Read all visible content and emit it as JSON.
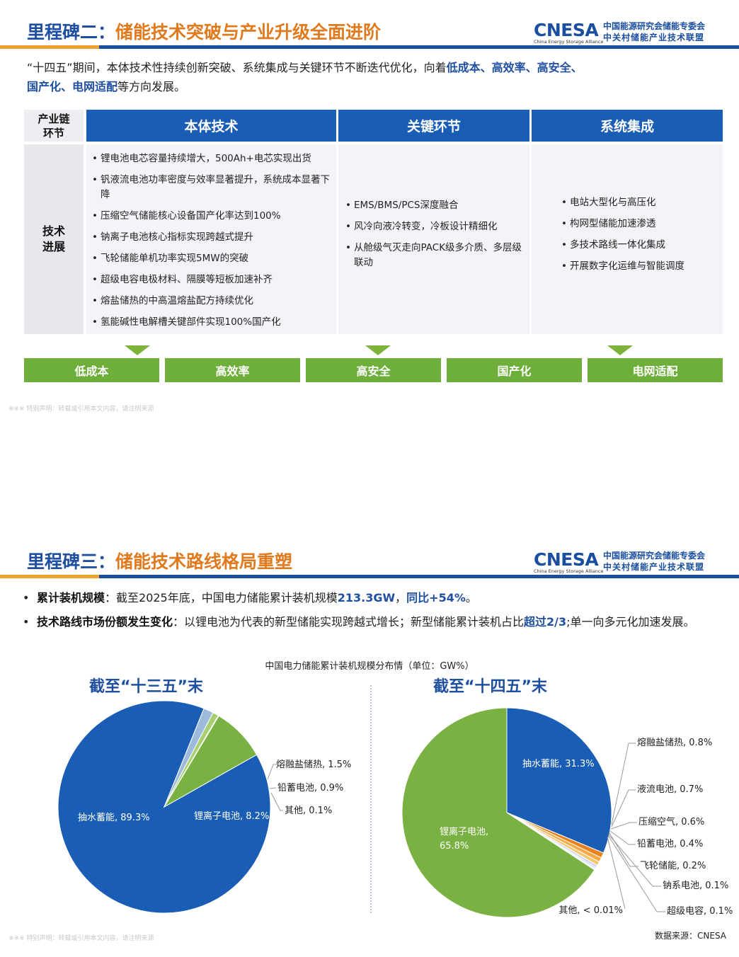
{
  "slide1": {
    "title_lead": "里程碑二：",
    "title_main": "储能技术突破与产业升级全面进阶",
    "logo": {
      "mark": "CNESA",
      "sub": "China Energy Storage Alliance",
      "cn1": "中国能源研究会储能专委会",
      "cn2": "中关村储能产业技术联盟"
    },
    "intro": {
      "text1": "“十四五”期间，本体技术性持续创新突破、系统集成与关键环节不断迭代优化，向着",
      "hl1": "低成本、高效率、高安全、",
      "hl2": "国产化、电网适配",
      "text2": "等方向发展。"
    },
    "table": {
      "corner": "产业链\n环节",
      "row_label": "技术\n进展",
      "col1": "本体技术",
      "col2": "关键环节",
      "col3": "系统集成",
      "col1_items": [
        "锂电池电芯容量持续增大，500Ah+电芯实现出货",
        "钒液流电池功率密度与效率显著提升，系统成本显著下降",
        "压缩空气储能核心设备国产化率达到100%",
        "钠离子电池核心指标实现跨越式提升",
        "飞轮储能单机功率实现5MW的突破",
        "超级电容电极材料、隔膜等短板加速补齐",
        "熔盐储热的中高温熔盐配方持续优化",
        "氢能碱性电解槽关键部件实现100%国产化"
      ],
      "col2_items": [
        "EMS/BMS/PCS深度融合",
        "风冷向液冷转变，冷板设计精细化",
        "从舱级气灭走向PACK级多介质、多层级联动"
      ],
      "col3_items": [
        "电站大型化与高压化",
        "构网型储能加速渗透",
        "多技术路线一体化集成",
        "开展数字化运维与智能调度"
      ]
    },
    "goals": [
      "低成本",
      "高效率",
      "高安全",
      "国产化",
      "电网适配"
    ],
    "disclaimer": "※※※ 特别声明：转载或引用本文内容，请注明来源"
  },
  "slide2": {
    "title_lead": "里程碑三：",
    "title_main": "储能技术路线格局重塑",
    "bullet1": {
      "key": "累计装机规模",
      "text": "：截至2025年底，中国电力储能累计装机规模",
      "v1": "213.3GW",
      "sep": "，",
      "v2": "同比+54%",
      "end": "。"
    },
    "bullet2": {
      "key": "技术路线市场份额发生变化",
      "text": "：以锂电池为代表的新型储能实现跨越式增长；新型储能累计装机占比",
      "v1": "超过2/3",
      "end": ";单一向多元化加速发展。"
    },
    "chart_title": "中国电力储能累计装机规模分布情（单位：GW%）",
    "left_title": "截至“十三五”末",
    "right_title": "截至“十四五”末",
    "source": "数据来源：CNESA",
    "disclaimer": "※※※ 特别声明：转载或引用本文内容，请注明来源"
  },
  "chart_data": [
    {
      "type": "pie",
      "title": "截至“十三五”末",
      "categories": [
        "抽水蓄能",
        "熔融盐储热",
        "铅蓄电池",
        "其他",
        "锂离子电池"
      ],
      "values": [
        89.3,
        1.5,
        0.9,
        0.1,
        8.2
      ],
      "labels": [
        "抽水蓄能, 89.3%",
        "熔融盐储热, 1.5%",
        "铅蓄电池, 0.9%",
        "其他, 0.1%",
        "锂离子电池, 8.2%"
      ],
      "colors": [
        "#1a5db5",
        "#9db9dc",
        "#a8d070",
        "#6a8fc8",
        "#79b142"
      ]
    },
    {
      "type": "pie",
      "title": "截至“十四五”末",
      "categories": [
        "抽水蓄能",
        "熔融盐储热",
        "液流电池",
        "压缩空气",
        "铅蓄电池",
        "飞轮储能",
        "钠系电池",
        "超级电容",
        "其他",
        "锂离子电池"
      ],
      "values": [
        31.3,
        0.8,
        0.7,
        0.6,
        0.4,
        0.2,
        0.1,
        0.1,
        0.01,
        65.8
      ],
      "labels": [
        "抽水蓄能, 31.3%",
        "熔融盐储热, 0.8%",
        "液流电池, 0.7%",
        "压缩空气, 0.6%",
        "铅蓄电池, 0.4%",
        "飞轮储能, 0.2%",
        "钠系电池, 0.1%",
        "超级电容, 0.1%",
        "其他, < 0.01%",
        "锂离子电池,\n65.8%"
      ],
      "colors": [
        "#1a5db5",
        "#e8821e",
        "#f3a948",
        "#f7c46a",
        "#c8d9ee",
        "#aac4e6",
        "#8fb0dd",
        "#b7d48f",
        "#d9e6c8",
        "#79b142"
      ]
    }
  ]
}
